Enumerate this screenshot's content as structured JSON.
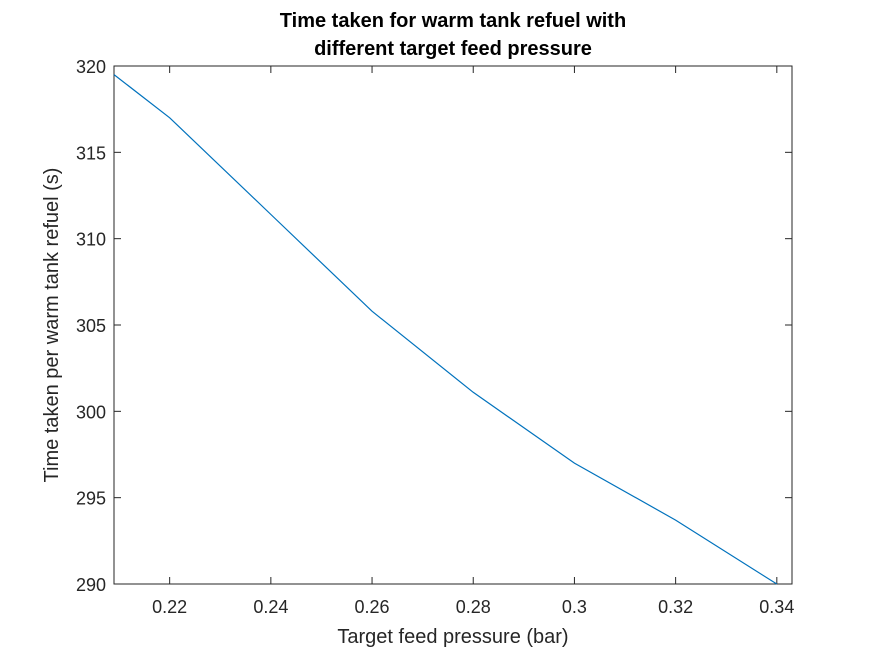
{
  "chart_data": {
    "type": "line",
    "title": [
      "Time taken for warm tank refuel with",
      "different target feed pressure"
    ],
    "xlabel": "Target feed pressure (bar)",
    "ylabel": "Time taken per warm tank refuel (s)",
    "xlim": [
      0.209,
      0.343
    ],
    "ylim": [
      290,
      320
    ],
    "x_ticks": [
      0.22,
      0.24,
      0.26,
      0.28,
      0.3,
      0.32,
      0.34
    ],
    "x_tick_labels": [
      "0.22",
      "0.24",
      "0.26",
      "0.28",
      "0.3",
      "0.32",
      "0.34"
    ],
    "y_ticks": [
      290,
      295,
      300,
      305,
      310,
      315,
      320
    ],
    "y_tick_labels": [
      "290",
      "295",
      "300",
      "305",
      "310",
      "315",
      "320"
    ],
    "grid": false,
    "legend": "none",
    "series": [
      {
        "color": "#0072BD",
        "x": [
          0.209,
          0.22,
          0.24,
          0.26,
          0.28,
          0.3,
          0.32,
          0.34
        ],
        "y": [
          319.5,
          317.0,
          311.4,
          305.8,
          301.1,
          297.0,
          293.7,
          290.0
        ]
      }
    ]
  }
}
